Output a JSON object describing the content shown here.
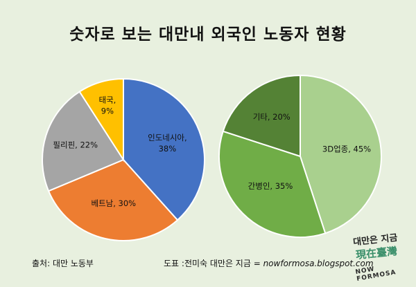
{
  "title": "숫자로 보는 대만내 외국인 노동자 현황",
  "colors": {
    "background": "#e8f0df"
  },
  "chart_data": [
    {
      "type": "pie",
      "slices": [
        {
          "label": "인도네시아",
          "value": 38,
          "text": "38%",
          "color": "#4472c4"
        },
        {
          "label": "베트남",
          "value": 30,
          "text": "30%",
          "color": "#ed7d31"
        },
        {
          "label": "필리핀",
          "value": 22,
          "text": "22%",
          "color": "#a5a5a5"
        },
        {
          "label": "태국",
          "value": 9,
          "text": "9%",
          "color": "#ffc000"
        }
      ]
    },
    {
      "type": "pie",
      "slices": [
        {
          "label": "3D업종",
          "value": 45,
          "text": "45%",
          "color": "#a9d08e"
        },
        {
          "label": "간병인",
          "value": 35,
          "text": "35%",
          "color": "#70ad47"
        },
        {
          "label": "기타",
          "value": 20,
          "text": "20%",
          "color": "#548235"
        }
      ]
    }
  ],
  "footer": {
    "source": "출처: 대만 노동부",
    "design": "도표 :전미숙 대만은 지금 = ",
    "url": "nowformosa.blogspot.com"
  },
  "logo": {
    "line1": "대만은 지금",
    "line2": "現在臺灣",
    "line3": "NOW FORMOSA"
  }
}
